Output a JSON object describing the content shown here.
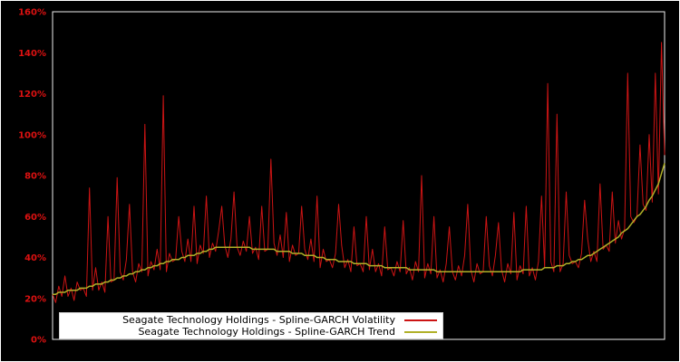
{
  "window": {
    "background": "#000000"
  },
  "axis": {
    "tick_color": "#dd1111",
    "border_color": "#eeeeee"
  },
  "chart_data": {
    "type": "line",
    "title": "",
    "xlabel": "",
    "ylabel": "",
    "unit": "%",
    "ylim": [
      0,
      160
    ],
    "y_ticks": [
      "0%",
      "20%",
      "40%",
      "60%",
      "80%",
      "100%",
      "120%",
      "140%",
      "160%"
    ],
    "y_tick_values": [
      0,
      20,
      40,
      60,
      80,
      100,
      120,
      140,
      160
    ],
    "x_ticks": [],
    "grid": false,
    "legend_position": "bottom-center-inside",
    "series": [
      {
        "name": "Seagate Technology Holdings - Spline-GARCH Volatility",
        "color": "#cc1414",
        "values": [
          22,
          18,
          26,
          21,
          31,
          21,
          25,
          19,
          28,
          24,
          25,
          21,
          74,
          24,
          35,
          24,
          28,
          23,
          60,
          28,
          29,
          79,
          33,
          29,
          39,
          66,
          33,
          28,
          37,
          33,
          105,
          31,
          38,
          34,
          44,
          34,
          119,
          33,
          42,
          38,
          39,
          60,
          43,
          38,
          49,
          38,
          65,
          37,
          46,
          42,
          70,
          40,
          47,
          43,
          53,
          65,
          46,
          40,
          49,
          72,
          45,
          41,
          48,
          43,
          60,
          42,
          45,
          39,
          65,
          43,
          44,
          88,
          47,
          41,
          51,
          40,
          62,
          38,
          46,
          41,
          42,
          65,
          44,
          39,
          49,
          38,
          70,
          35,
          44,
          38,
          39,
          35,
          42,
          66,
          46,
          35,
          39,
          33,
          55,
          36,
          37,
          33,
          60,
          34,
          44,
          33,
          37,
          31,
          55,
          34,
          35,
          31,
          38,
          33,
          58,
          32,
          35,
          29,
          38,
          33,
          80,
          30,
          37,
          32,
          60,
          30,
          34,
          28,
          37,
          55,
          33,
          29,
          36,
          31,
          41,
          66,
          34,
          28,
          37,
          32,
          33,
          60,
          36,
          31,
          41,
          57,
          34,
          28,
          37,
          32,
          62,
          29,
          36,
          32,
          65,
          31,
          35,
          29,
          38,
          70,
          35,
          125,
          38,
          33,
          110,
          33,
          37,
          72,
          41,
          37,
          38,
          35,
          42,
          68,
          49,
          38,
          43,
          38,
          76,
          44,
          46,
          43,
          72,
          47,
          58,
          49,
          54,
          130,
          60,
          57,
          60,
          95,
          66,
          63,
          100,
          67,
          130,
          71,
          145,
          90
        ]
      },
      {
        "name": "Seagate Technology Holdings - Spline-GARCH Trend",
        "color": "#b0b028",
        "values": [
          22,
          22,
          23,
          23,
          23,
          24,
          24,
          24,
          24,
          25,
          25,
          25,
          26,
          26,
          27,
          27,
          27,
          28,
          28,
          29,
          29,
          30,
          30,
          31,
          31,
          32,
          32,
          33,
          33,
          34,
          34,
          35,
          35,
          36,
          36,
          37,
          37,
          38,
          38,
          39,
          39,
          39,
          40,
          40,
          41,
          41,
          41,
          42,
          42,
          43,
          43,
          44,
          44,
          45,
          45,
          45,
          45,
          45,
          45,
          45,
          45,
          45,
          45,
          45,
          45,
          44,
          44,
          44,
          44,
          44,
          44,
          44,
          44,
          43,
          43,
          43,
          43,
          43,
          42,
          42,
          42,
          42,
          41,
          41,
          41,
          41,
          40,
          40,
          40,
          39,
          39,
          39,
          39,
          38,
          38,
          38,
          38,
          38,
          37,
          37,
          37,
          37,
          37,
          36,
          36,
          36,
          36,
          36,
          35,
          35,
          35,
          35,
          35,
          35,
          35,
          35,
          34,
          34,
          34,
          34,
          34,
          34,
          34,
          34,
          34,
          33,
          33,
          33,
          33,
          33,
          33,
          33,
          33,
          33,
          33,
          33,
          33,
          33,
          33,
          33,
          33,
          33,
          33,
          33,
          33,
          33,
          33,
          33,
          33,
          33,
          33,
          33,
          33,
          34,
          34,
          34,
          34,
          34,
          34,
          34,
          35,
          35,
          35,
          35,
          36,
          36,
          36,
          37,
          37,
          38,
          38,
          39,
          39,
          40,
          41,
          41,
          42,
          43,
          44,
          45,
          46,
          47,
          48,
          49,
          50,
          52,
          53,
          54,
          56,
          58,
          60,
          61,
          63,
          65,
          68,
          70,
          73,
          76,
          81,
          86
        ]
      }
    ]
  }
}
